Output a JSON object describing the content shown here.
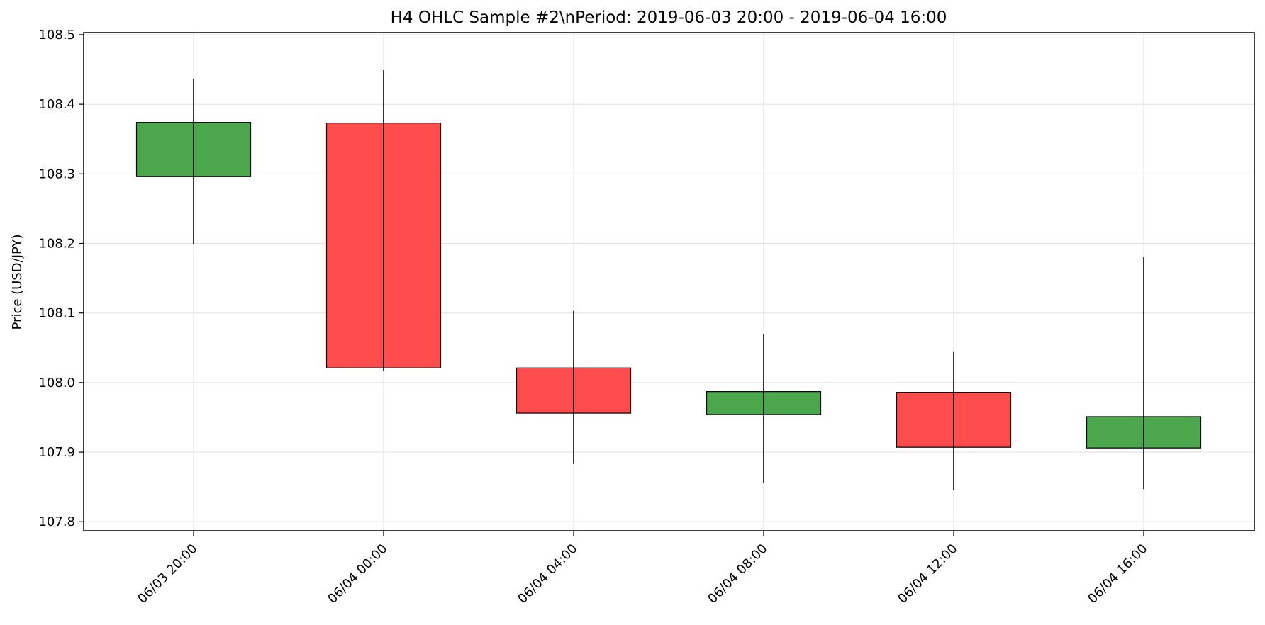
{
  "chart_data": {
    "type": "candlestick",
    "title": "H4 OHLC Sample #2\\nPeriod: 2019-06-03 20:00 - 2019-06-04 16:00",
    "xlabel": "",
    "ylabel": "Price (USD/JPY)",
    "ylim": [
      107.787,
      108.503
    ],
    "yticks": [
      "107.8",
      "107.9",
      "108.0",
      "108.1",
      "108.2",
      "108.3",
      "108.4",
      "108.5"
    ],
    "grid": true,
    "legend": "none",
    "categories": [
      "06/03 20:00",
      "06/04 00:00",
      "06/04 04:00",
      "06/04 08:00",
      "06/04 12:00",
      "06/04 16:00"
    ],
    "ohlc": [
      {
        "open": 108.296,
        "high": 108.436,
        "low": 108.199,
        "close": 108.374
      },
      {
        "open": 108.373,
        "high": 108.449,
        "low": 108.017,
        "close": 108.021
      },
      {
        "open": 108.021,
        "high": 108.103,
        "low": 107.883,
        "close": 107.956
      },
      {
        "open": 107.954,
        "high": 108.07,
        "low": 107.856,
        "close": 107.987
      },
      {
        "open": 107.986,
        "high": 108.044,
        "low": 107.846,
        "close": 107.907
      },
      {
        "open": 107.906,
        "high": 108.18,
        "low": 107.847,
        "close": 107.951
      }
    ],
    "colors": {
      "up": "#4ca64c",
      "down": "#ff4c4c",
      "wick": "#000000",
      "grid": "#e3e3e3"
    }
  }
}
